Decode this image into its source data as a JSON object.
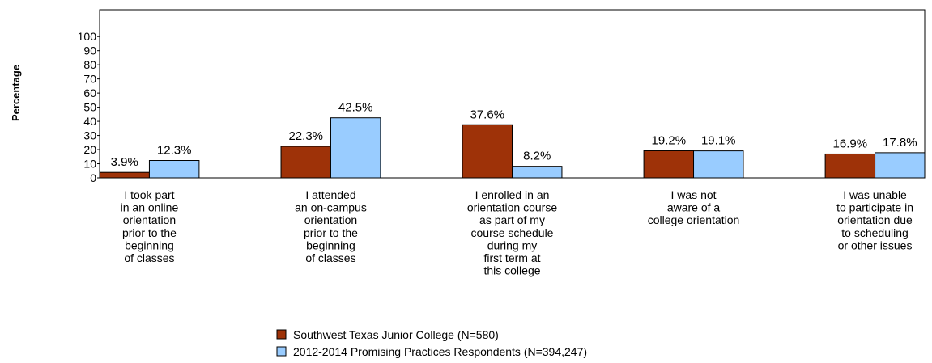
{
  "chart_data": {
    "type": "bar",
    "y_label": "Percentage",
    "categories": [
      [
        "I took part",
        "in an online",
        "orientation",
        "prior to the",
        "beginning",
        "of classes"
      ],
      [
        "I attended",
        "an on-campus",
        "orientation",
        "prior to the",
        "beginning",
        "of classes"
      ],
      [
        "I enrolled in an",
        "orientation course",
        "as part of my",
        "course schedule",
        "during my",
        "first term at",
        "this college"
      ],
      [
        "I was not",
        "aware of a",
        "college orientation"
      ],
      [
        "I was unable",
        "to participate in",
        "orientation due",
        "to scheduling",
        "or other issues"
      ]
    ],
    "series": [
      {
        "name": "Southwest Texas Junior College (N=580)",
        "color": "#9e3208",
        "values": [
          3.9,
          22.3,
          37.6,
          19.2,
          16.9
        ],
        "value_labels": [
          "3.9%",
          "22.3%",
          "37.6%",
          "19.2%",
          "16.9%"
        ]
      },
      {
        "name": "2012-2014 Promising Practices Respondents (N=394,247)",
        "color": "#99ccff",
        "values": [
          12.3,
          42.5,
          8.2,
          19.1,
          17.8
        ],
        "value_labels": [
          "12.3%",
          "42.5%",
          "8.2%",
          "19.1%",
          "17.8%"
        ]
      }
    ],
    "ylim": [
      0,
      119
    ],
    "yticks": [
      0,
      10,
      20,
      30,
      40,
      50,
      60,
      70,
      80,
      90,
      100
    ],
    "legend": "bottom"
  }
}
